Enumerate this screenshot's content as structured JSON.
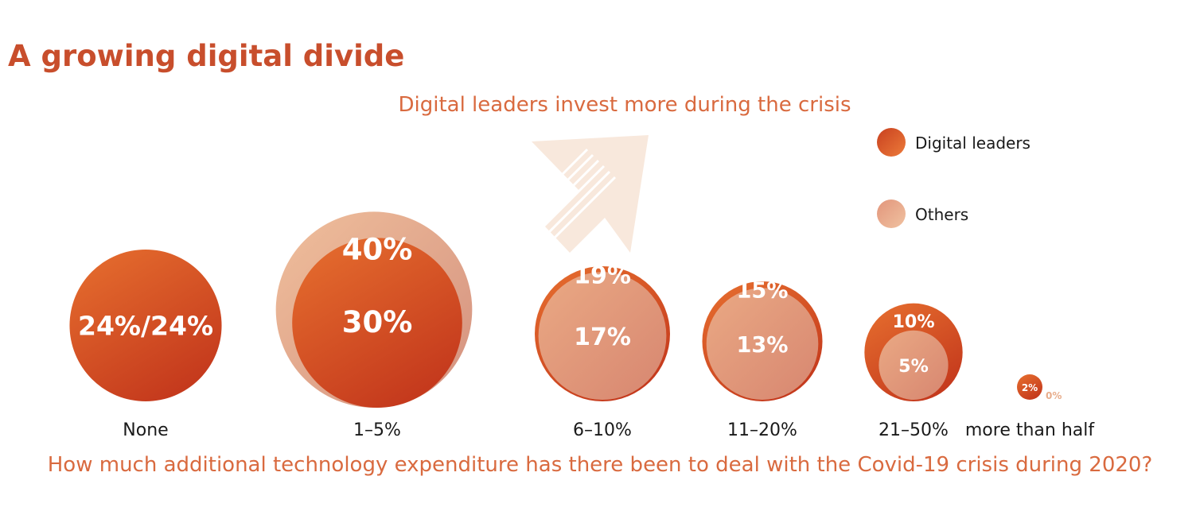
{
  "title": "A growing digital divide",
  "chart_data": {
    "type": "bubble",
    "title": "A growing digital divide",
    "subtitle": "Digital leaders invest more during the crisis",
    "xlabel": "How much additional technology expenditure has there been to deal with the Covid-19 crisis during 2020?",
    "legend": {
      "placement": "top-right",
      "items": [
        {
          "name": "Digital leaders",
          "color": "#e0632a"
        },
        {
          "name": "Others",
          "color": "#e8ad8c"
        }
      ]
    },
    "categories": [
      "None",
      "1–5%",
      "6–10%",
      "11–20%",
      "21–50%",
      "more than half"
    ],
    "series": [
      {
        "name": "Digital leaders",
        "values": [
          24,
          30,
          19,
          15,
          10,
          2
        ]
      },
      {
        "name": "Others",
        "values": [
          24,
          40,
          17,
          13,
          5,
          0
        ]
      }
    ],
    "labels": [
      {
        "category": "None",
        "combined": "24%/24%"
      },
      {
        "category": "1–5%",
        "leaders": "30%",
        "others": "40%"
      },
      {
        "category": "6–10%",
        "leaders": "19%",
        "others": "17%"
      },
      {
        "category": "11–20%",
        "leaders": "15%",
        "others": "13%"
      },
      {
        "category": "21–50%",
        "leaders": "10%",
        "others": "5%"
      },
      {
        "category": "more than half",
        "leaders": "2%",
        "others": "0%"
      }
    ]
  }
}
